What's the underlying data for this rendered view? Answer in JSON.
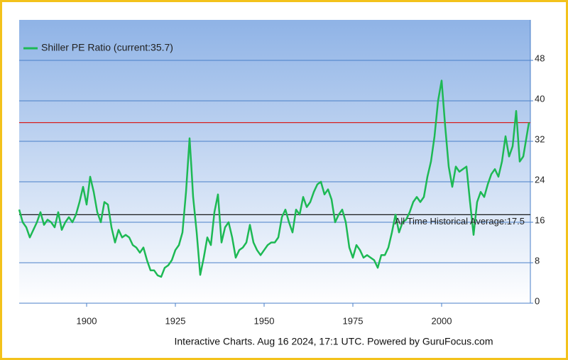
{
  "chart_data": {
    "type": "line",
    "footer": "Interactive Charts. Aug 16 2024, 17:1 UTC. Powered by GuruFocus.com",
    "xlim": [
      1881,
      2025
    ],
    "xticks": [
      1900,
      1925,
      1950,
      1975,
      2000
    ],
    "ylim": [
      0,
      56
    ],
    "yticks": [
      0,
      8,
      16,
      24,
      32,
      40,
      48
    ],
    "grid": true,
    "legend": "top-left",
    "x": [
      1881,
      1882,
      1883,
      1884,
      1885,
      1886,
      1887,
      1888,
      1889,
      1890,
      1891,
      1892,
      1893,
      1894,
      1895,
      1896,
      1897,
      1898,
      1899,
      1900,
      1901,
      1902,
      1903,
      1904,
      1905,
      1906,
      1907,
      1908,
      1909,
      1910,
      1911,
      1912,
      1913,
      1914,
      1915,
      1916,
      1917,
      1918,
      1919,
      1920,
      1921,
      1922,
      1923,
      1924,
      1925,
      1926,
      1927,
      1928,
      1929,
      1929.5,
      1930,
      1931,
      1932,
      1933,
      1934,
      1935,
      1936,
      1937,
      1938,
      1939,
      1940,
      1941,
      1942,
      1943,
      1944,
      1945,
      1946,
      1947,
      1948,
      1949,
      1950,
      1951,
      1952,
      1953,
      1954,
      1955,
      1956,
      1957,
      1958,
      1959,
      1960,
      1961,
      1962,
      1963,
      1964,
      1965,
      1966,
      1967,
      1968,
      1969,
      1970,
      1971,
      1972,
      1973,
      1974,
      1975,
      1976,
      1977,
      1978,
      1979,
      1980,
      1981,
      1982,
      1983,
      1984,
      1985,
      1986,
      1987,
      1988,
      1989,
      1990,
      1991,
      1992,
      1993,
      1994,
      1995,
      1996,
      1997,
      1998,
      1999,
      2000,
      2001,
      2002,
      2003,
      2004,
      2005,
      2006,
      2007,
      2008,
      2009,
      2010,
      2011,
      2012,
      2013,
      2014,
      2015,
      2016,
      2017,
      2018,
      2019,
      2020,
      2021,
      2022,
      2023,
      2024.6
    ],
    "series": [
      {
        "name": "Shiller PE Ratio (current:35.7)",
        "color": "#1db954",
        "values": [
          18.5,
          16,
          15,
          13,
          14.5,
          16,
          18,
          15.5,
          16.5,
          16,
          15,
          18,
          14.5,
          16,
          17,
          16,
          17.5,
          20,
          23,
          19.5,
          25,
          22,
          18,
          16,
          20,
          19.5,
          15,
          12,
          14.5,
          13,
          13.5,
          13,
          11.5,
          11,
          10,
          11,
          8.5,
          6.5,
          6.5,
          5.5,
          5.2,
          7,
          7.5,
          8.5,
          10.5,
          11.5,
          14,
          22,
          32.6,
          27,
          21,
          14,
          5.6,
          9,
          13,
          11.5,
          18,
          21.5,
          12,
          15,
          16,
          13,
          9,
          10.5,
          11,
          12,
          15.5,
          12,
          10.5,
          9.5,
          10.5,
          11.5,
          12,
          12,
          13,
          17,
          18.5,
          16,
          14,
          18.5,
          17.5,
          21,
          19,
          20,
          22,
          23.5,
          24,
          21.5,
          22.5,
          20.5,
          16,
          17.5,
          18.5,
          16,
          11,
          9,
          11.5,
          10.5,
          9,
          9.5,
          9,
          8.5,
          7,
          9.5,
          9.5,
          11,
          14,
          17.5,
          14,
          16,
          16.5,
          18,
          20,
          21,
          20,
          21,
          25,
          28,
          33,
          40,
          44,
          35,
          27,
          23,
          27,
          26,
          26.5,
          27,
          20,
          13.5,
          20,
          22,
          21,
          23.5,
          25.5,
          26.5,
          25,
          28,
          33,
          29,
          31,
          38,
          28,
          29,
          35.7
        ]
      }
    ],
    "reference_lines": [
      {
        "value": 35.7,
        "color": "#d62020"
      },
      {
        "value": 17.5,
        "color": "#000000",
        "label": "All Time Historical Average:17.5"
      }
    ]
  }
}
